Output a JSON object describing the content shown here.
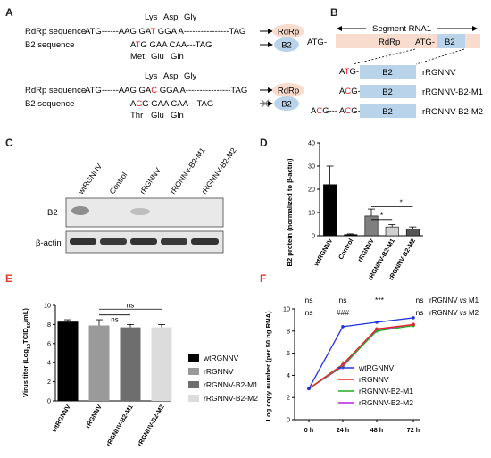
{
  "panels": {
    "A": {
      "letter": "A",
      "top_aa": [
        "Lys",
        "Asp",
        "Gly"
      ],
      "row1_label": "RdRp sequence",
      "row1_seq_a": "ATG------AAG GA",
      "row1_seq_red": "T",
      "row1_seq_b": " GGA A----------------TAG",
      "row1_badge": "RdRp",
      "row2_label": "B2 sequence",
      "row2_seq_a": "A",
      "row2_seq_red": "T",
      "row2_seq_b": "G GAA CAA---TAG",
      "row2_badge": "B2",
      "row2_aa": [
        "Met",
        "Glu",
        "Gln"
      ],
      "mid_aa": [
        "Lys",
        "Asp",
        "Gly"
      ],
      "row3_label": "RdRp sequence",
      "row3_seq_a": "ATG------AAG GA",
      "row3_seq_red": "C",
      "row3_seq_b": " GGA A----------------TAG",
      "row3_badge": "RdRp",
      "row4_label": "B2 sequence",
      "row4_seq_a": "A",
      "row4_seq_red": "C",
      "row4_seq_b": "G GAA CAA---TAG",
      "row4_badge": "B2",
      "row4_aa": [
        "Thr",
        "Glu",
        "Gln"
      ]
    },
    "B": {
      "letter": "B",
      "segment_label": "Segment RNA1",
      "atg_left": "ATG-",
      "rdrp": "RdRp",
      "atg_mid": "ATG-",
      "b2": "B2",
      "constructs": [
        {
          "prefix_a": "A",
          "prefix_red": "T",
          "prefix_b": "G-",
          "prefix2": "",
          "box": "B2",
          "name": "rRGNNV"
        },
        {
          "prefix_a": "A",
          "prefix_red": "C",
          "prefix_b": "G-",
          "prefix2": "",
          "box": "B2",
          "name": "rRGNNV-B2-M1"
        },
        {
          "prefix_a": "A",
          "prefix_red": "C",
          "prefix_b": "G---",
          "prefix2": "ACG-",
          "box": "B2",
          "name": "rRGNNV-B2-M2"
        }
      ]
    },
    "C": {
      "letter": "C",
      "lanes": [
        "wtRGNNV",
        "Control",
        "rRGNNV",
        "rRGNNV-B2-M1",
        "rRGNNV-B2-M2"
      ],
      "row_labels": [
        "B2",
        "β-actin"
      ]
    },
    "D": {
      "letter": "D",
      "ylabel": "B2 protein (normalized to β-actin)",
      "sig": [
        "*",
        "*"
      ]
    },
    "E": {
      "letter": "E",
      "ylabel_a": "Virus titer (Log",
      "ylabel_sub": "10",
      "ylabel_b": "TCID",
      "ylabel_sub2": "50",
      "ylabel_c": "/mL)",
      "sig": [
        "ns",
        "ns"
      ],
      "legend": [
        "wtRGNNV",
        "rRGNNV",
        "rRGNNV-B2-M1",
        "rRGNNV-B2-M2"
      ]
    },
    "F": {
      "letter": "F",
      "ylabel": "Log copy number (per 50 ng RNA)",
      "sig_row1": [
        "ns",
        "ns",
        "***",
        "ns"
      ],
      "sig_row2": [
        "ns",
        "###",
        "",
        "ns"
      ],
      "cmp1_a": "rRGNNV ",
      "cmp1_vs": "vs",
      "cmp1_b": " M1",
      "cmp2_a": "rRGNNV ",
      "cmp2_vs": "vs",
      "cmp2_b": " M2"
    }
  },
  "colors": {
    "rdrp_fill": "#f8dccd",
    "b2_fill": "#b8d3ea",
    "panel_letter_red": "#e8352a",
    "panel_letter_black": "#222222"
  },
  "chart_data": [
    {
      "type": "bar",
      "panel": "D",
      "categories": [
        "wtRGNNV",
        "Control",
        "rRGNNV",
        "rRGNNV-B2-M1",
        "rRGNNV-B2-M2"
      ],
      "values": [
        22,
        0.5,
        8.5,
        3.8,
        2.8
      ],
      "errors": [
        8,
        0.3,
        3,
        1,
        1
      ],
      "colors": [
        "#000000",
        "#000000",
        "#7f7f7f",
        "#cfcfcf",
        "#555555"
      ],
      "ylim": [
        0,
        40
      ],
      "yticks": [
        0,
        10,
        20,
        30,
        40
      ],
      "ylabel": "B2 protein (normalized to β-actin)"
    },
    {
      "type": "bar",
      "panel": "E",
      "categories": [
        "wtRGNNV",
        "rRGNNV",
        "rRGNNV-B2-M1",
        "rRGNNV-B2-M2"
      ],
      "values": [
        8.3,
        7.9,
        7.7,
        7.7
      ],
      "errors": [
        0.2,
        0.6,
        0.3,
        0.3
      ],
      "colors": [
        "#000000",
        "#9a9a9a",
        "#6e6e6e",
        "#dcdcdc"
      ],
      "ylim": [
        0,
        10
      ],
      "yticks": [
        0,
        2,
        4,
        6,
        8,
        10
      ],
      "legend": [
        "wtRGNNV",
        "rRGNNV",
        "rRGNNV-B2-M1",
        "rRGNNV-B2-M2"
      ]
    },
    {
      "type": "line",
      "panel": "F",
      "x": [
        "0 h",
        "24 h",
        "48 h",
        "72 h"
      ],
      "series": [
        {
          "name": "wtRGNNV",
          "values": [
            2.8,
            8.4,
            8.8,
            9.2
          ],
          "color": "#2233dd"
        },
        {
          "name": "rRGNNV",
          "values": [
            2.8,
            5.0,
            8.2,
            8.6
          ],
          "color": "#ee2222"
        },
        {
          "name": "rRGNNV-B2-M1",
          "values": [
            2.8,
            4.9,
            8.0,
            8.5
          ],
          "color": "#22aa22"
        },
        {
          "name": "rRGNNV-B2-M2",
          "values": [
            2.8,
            4.8,
            8.1,
            8.6
          ],
          "color": "#bb22dd"
        }
      ],
      "ylim": [
        0,
        10
      ],
      "yticks": [
        0,
        2,
        4,
        6,
        8,
        10
      ],
      "ylabel": "Log copy number (per 50 ng RNA)"
    }
  ]
}
